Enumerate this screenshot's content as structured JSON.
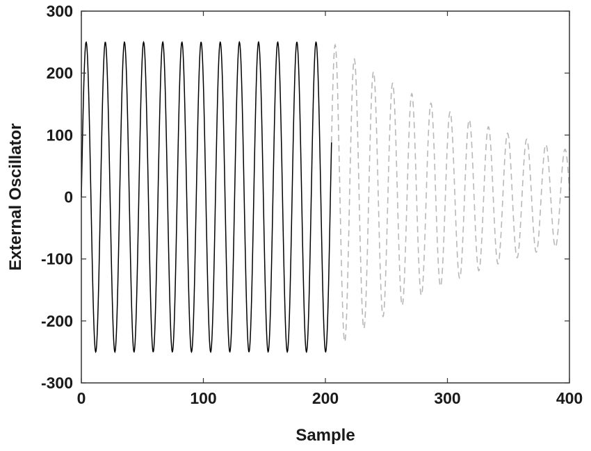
{
  "chart_data": {
    "type": "line",
    "title": "",
    "xlabel": "Sample",
    "ylabel": "External Oscillator",
    "xlim": [
      0,
      400
    ],
    "ylim": [
      -300,
      300
    ],
    "xticks": [
      0,
      100,
      200,
      300,
      400
    ],
    "yticks": [
      -300,
      -200,
      -100,
      0,
      100,
      200,
      300
    ],
    "grid": false,
    "legend": "none",
    "series": [
      {
        "style": "solid",
        "color": "#000000",
        "x_range": [
          0,
          205
        ],
        "amplitude": 250,
        "period": 15.7,
        "decay_rate": 0
      },
      {
        "style": "dashed",
        "color": "#b8b8b8",
        "x_range": [
          205,
          400
        ],
        "amplitude": 250,
        "period": 15.7,
        "decay_rate": 0.00615
      }
    ]
  }
}
